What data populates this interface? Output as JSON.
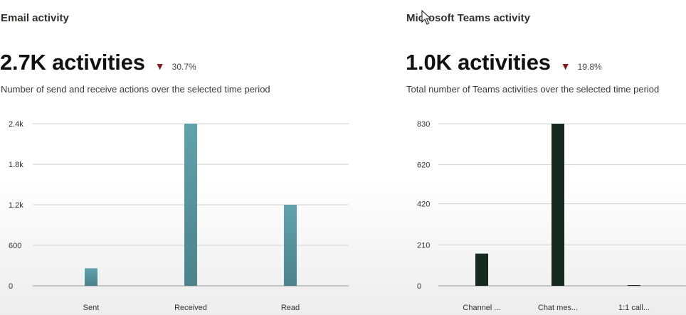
{
  "email": {
    "title": "Email activity",
    "headline": "2.7K activities",
    "trend_glyph": "▼",
    "change": "30.7%",
    "subtitle": "Number of send and receive actions over the selected time period"
  },
  "teams": {
    "title": "Microsoft Teams activity",
    "headline": "1.0K activities",
    "trend_glyph": "▼",
    "change": "19.8%",
    "subtitle": "Total number of Teams activities over the selected time period"
  },
  "colors": {
    "email_bar_top": "#5fa3ad",
    "email_bar_bottom": "#4b828b",
    "teams_bar": "#172a22",
    "trend_down": "#8b1a1a",
    "grid": "#d0d0d0"
  },
  "chart_data": [
    {
      "type": "bar",
      "categories": [
        "Sent",
        "Received",
        "Read"
      ],
      "values": [
        260,
        2400,
        1200
      ],
      "yticks": [
        0,
        600,
        1200,
        1800,
        2400
      ],
      "ytick_labels": [
        "0",
        "600",
        "1.2k",
        "1.8k",
        "2.4k"
      ],
      "ylim": [
        0,
        2400
      ],
      "grid": true
    },
    {
      "type": "bar",
      "categories": [
        "Channel ...",
        "Chat mes...",
        "1:1 call..."
      ],
      "values": [
        165,
        830,
        2
      ],
      "yticks": [
        0,
        210,
        420,
        620,
        830
      ],
      "ytick_labels": [
        "0",
        "210",
        "420",
        "620",
        "830"
      ],
      "ylim": [
        0,
        830
      ],
      "grid": true
    }
  ]
}
